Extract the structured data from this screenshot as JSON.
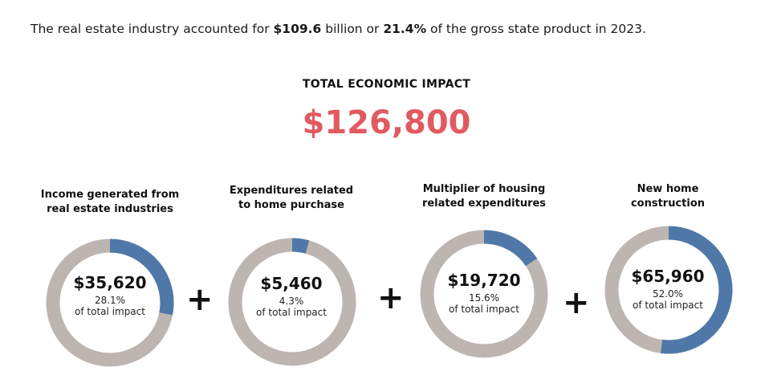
{
  "headline": {
    "prefix": "The real estate industry accounted for ",
    "amount": "$109.6",
    "mid": " billion or ",
    "share": "21.4%",
    "suffix": " of the gross state product in 2023."
  },
  "impact": {
    "label": "TOTAL ECONOMIC IMPACT",
    "value": "$126,800"
  },
  "operators": [
    "+",
    "+",
    "+"
  ],
  "colors": {
    "accent": "#e05a5f",
    "segment": "#4f78a8",
    "track": "#bdb5b1"
  },
  "chart_data": {
    "type": "pie",
    "title": "TOTAL ECONOMIC IMPACT",
    "total": 126800,
    "components": [
      {
        "title_line1": "Income generated from",
        "title_line2": "real estate industries",
        "value": 35620,
        "value_label": "$35,620",
        "percent": 28.1,
        "percent_label": "28.1%",
        "sublabel": "of total impact"
      },
      {
        "title_line1": "Expenditures related",
        "title_line2": "to home purchase",
        "value": 5460,
        "value_label": "$5,460",
        "percent": 4.3,
        "percent_label": "4.3%",
        "sublabel": "of total impact"
      },
      {
        "title_line1": "Multiplier of housing",
        "title_line2": "related expenditures",
        "value": 19720,
        "value_label": "$19,720",
        "percent": 15.6,
        "percent_label": "15.6%",
        "sublabel": "of total impact"
      },
      {
        "title_line1": "New home",
        "title_line2": "construction",
        "value": 65960,
        "value_label": "$65,960",
        "percent": 52.0,
        "percent_label": "52.0%",
        "sublabel": "of total impact"
      }
    ]
  }
}
